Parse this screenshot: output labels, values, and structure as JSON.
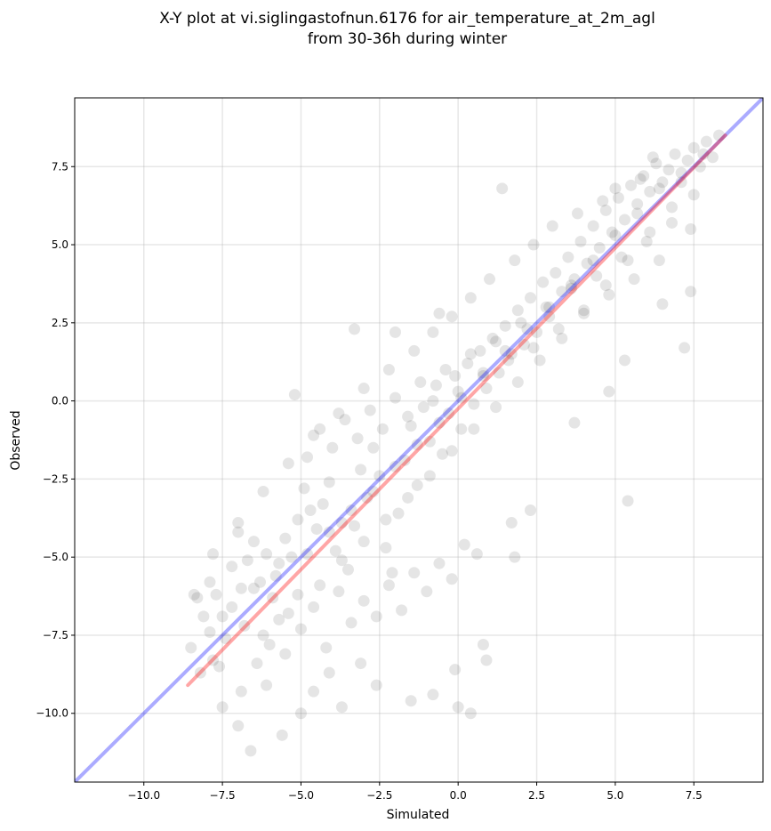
{
  "chart_data": {
    "type": "scatter",
    "title_line1": "X-Y plot at vi.siglingastofnun.6176 for air_temperature_at_2m_agl",
    "title_line2": "from 30-36h during winter",
    "xlabel": "Simulated",
    "ylabel": "Observed",
    "xlim": [
      -12.2,
      9.7
    ],
    "ylim": [
      -12.2,
      9.7
    ],
    "x_ticks": [
      -10.0,
      -7.5,
      -5.0,
      -2.5,
      0.0,
      2.5,
      5.0,
      7.5
    ],
    "x_tick_labels": [
      "−10.0",
      "−7.5",
      "−5.0",
      "−2.5",
      "0.0",
      "2.5",
      "5.0",
      "7.5"
    ],
    "y_ticks": [
      -10.0,
      -7.5,
      -5.0,
      -2.5,
      0.0,
      2.5,
      5.0,
      7.5
    ],
    "y_tick_labels": [
      "−10.0",
      "−7.5",
      "−5.0",
      "−2.5",
      "0.0",
      "2.5",
      "5.0",
      "7.5"
    ],
    "grid": true,
    "point_color": "#000000",
    "point_alpha": 0.1,
    "identity_line": {
      "x": [
        -12.2,
        9.7
      ],
      "y": [
        -12.2,
        9.7
      ],
      "color": "#0000ff"
    },
    "fit_line": {
      "x": [
        -8.6,
        8.5
      ],
      "y": [
        -9.1,
        8.5
      ],
      "color": "#ff0000"
    },
    "points": [
      [
        -8.3,
        -6.3
      ],
      [
        -8.1,
        -6.9
      ],
      [
        -7.9,
        -5.8
      ],
      [
        -7.7,
        -6.2
      ],
      [
        -7.5,
        -6.9
      ],
      [
        -7.4,
        -7.6
      ],
      [
        -7.2,
        -5.3
      ],
      [
        -7.0,
        -4.2
      ],
      [
        -6.9,
        -6.0
      ],
      [
        -6.7,
        -5.1
      ],
      [
        -6.5,
        -4.5
      ],
      [
        -6.3,
        -5.8
      ],
      [
        -6.1,
        -4.9
      ],
      [
        -5.9,
        -6.3
      ],
      [
        -5.7,
        -5.2
      ],
      [
        -5.5,
        -4.4
      ],
      [
        -5.3,
        -5.0
      ],
      [
        -5.1,
        -3.8
      ],
      [
        -4.9,
        -2.8
      ],
      [
        -4.7,
        -3.5
      ],
      [
        -4.5,
        -4.1
      ],
      [
        -4.3,
        -3.3
      ],
      [
        -4.1,
        -2.6
      ],
      [
        -3.9,
        -4.8
      ],
      [
        -3.7,
        -3.9
      ],
      [
        -3.5,
        -5.4
      ],
      [
        -3.3,
        -4.0
      ],
      [
        -3.1,
        -2.2
      ],
      [
        -2.9,
        -3.1
      ],
      [
        -2.7,
        -1.5
      ],
      [
        -2.5,
        -2.4
      ],
      [
        -2.3,
        -4.7
      ],
      [
        -2.1,
        -5.5
      ],
      [
        -1.9,
        -3.6
      ],
      [
        -1.7,
        -1.9
      ],
      [
        -1.5,
        -0.8
      ],
      [
        -1.3,
        -2.7
      ],
      [
        -1.1,
        -0.2
      ],
      [
        -0.9,
        -1.3
      ],
      [
        -0.7,
        0.5
      ],
      [
        -0.5,
        -1.7
      ],
      [
        -0.3,
        -0.4
      ],
      [
        -0.1,
        0.8
      ],
      [
        0.1,
        -0.9
      ],
      [
        0.3,
        1.2
      ],
      [
        0.5,
        -0.1
      ],
      [
        0.7,
        1.6
      ],
      [
        0.9,
        0.4
      ],
      [
        1.1,
        2.0
      ],
      [
        1.3,
        0.9
      ],
      [
        1.5,
        2.4
      ],
      [
        1.7,
        1.5
      ],
      [
        1.9,
        2.9
      ],
      [
        2.1,
        1.8
      ],
      [
        2.3,
        3.3
      ],
      [
        2.5,
        2.2
      ],
      [
        2.7,
        3.8
      ],
      [
        2.9,
        2.7
      ],
      [
        3.1,
        4.1
      ],
      [
        3.3,
        3.5
      ],
      [
        3.5,
        4.6
      ],
      [
        3.7,
        3.9
      ],
      [
        3.9,
        5.1
      ],
      [
        4.1,
        4.4
      ],
      [
        4.3,
        5.6
      ],
      [
        4.5,
        4.9
      ],
      [
        4.7,
        6.1
      ],
      [
        4.9,
        5.4
      ],
      [
        5.1,
        6.5
      ],
      [
        5.3,
        5.8
      ],
      [
        5.5,
        6.9
      ],
      [
        5.7,
        6.3
      ],
      [
        5.9,
        7.2
      ],
      [
        6.1,
        6.7
      ],
      [
        6.3,
        7.6
      ],
      [
        6.5,
        7.0
      ],
      [
        6.7,
        7.4
      ],
      [
        6.9,
        7.9
      ],
      [
        7.1,
        7.3
      ],
      [
        7.3,
        7.7
      ],
      [
        7.5,
        8.1
      ],
      [
        7.7,
        7.5
      ],
      [
        7.9,
        8.3
      ],
      [
        8.1,
        7.8
      ],
      [
        8.3,
        8.5
      ],
      [
        7.4,
        5.5
      ],
      [
        7.2,
        1.7
      ],
      [
        7.4,
        3.5
      ],
      [
        6.5,
        3.1
      ],
      [
        5.3,
        1.3
      ],
      [
        5.4,
        -3.2
      ],
      [
        1.4,
        6.8
      ],
      [
        -0.6,
        2.8
      ],
      [
        -3.3,
        2.3
      ],
      [
        -5.2,
        0.2
      ],
      [
        -2.0,
        2.2
      ],
      [
        -7.8,
        -8.3
      ],
      [
        -7.5,
        -9.8
      ],
      [
        -7.0,
        -10.4
      ],
      [
        -6.6,
        -11.2
      ],
      [
        -6.1,
        -9.1
      ],
      [
        -5.6,
        -10.7
      ],
      [
        -5.0,
        -10.0
      ],
      [
        -4.6,
        -9.3
      ],
      [
        -4.1,
        -8.7
      ],
      [
        -3.7,
        -9.8
      ],
      [
        -3.1,
        -8.4
      ],
      [
        -2.6,
        -9.1
      ],
      [
        -1.5,
        -9.6
      ],
      [
        -0.8,
        -9.4
      ],
      [
        0.0,
        -9.8
      ],
      [
        0.4,
        -10.0
      ],
      [
        -0.1,
        -8.6
      ],
      [
        0.8,
        -7.8
      ],
      [
        0.9,
        -8.3
      ],
      [
        1.8,
        -5.0
      ],
      [
        1.7,
        -3.9
      ],
      [
        2.3,
        -3.5
      ],
      [
        3.7,
        -0.7
      ],
      [
        4.8,
        0.3
      ],
      [
        -6.8,
        -7.2
      ],
      [
        -6.4,
        -8.4
      ],
      [
        -6.0,
        -7.8
      ],
      [
        -5.7,
        -7.0
      ],
      [
        -5.4,
        -6.8
      ],
      [
        -5.0,
        -7.3
      ],
      [
        -4.6,
        -6.6
      ],
      [
        -4.2,
        -7.9
      ],
      [
        -3.8,
        -6.1
      ],
      [
        -3.4,
        -7.1
      ],
      [
        -3.0,
        -6.4
      ],
      [
        -2.6,
        -6.9
      ],
      [
        -2.2,
        -5.9
      ],
      [
        -1.8,
        -6.7
      ],
      [
        -1.4,
        -5.5
      ],
      [
        -1.0,
        -6.1
      ],
      [
        -0.6,
        -5.2
      ],
      [
        -0.2,
        -5.7
      ],
      [
        0.2,
        -4.6
      ],
      [
        0.6,
        -4.9
      ],
      [
        -4.8,
        -1.8
      ],
      [
        -4.4,
        -0.9
      ],
      [
        -4.0,
        -1.5
      ],
      [
        -3.6,
        -0.6
      ],
      [
        -3.2,
        -1.2
      ],
      [
        -2.8,
        -0.3
      ],
      [
        -2.4,
        -0.9
      ],
      [
        -2.0,
        0.1
      ],
      [
        -1.6,
        -0.5
      ],
      [
        -1.2,
        0.6
      ],
      [
        -0.8,
        0.0
      ],
      [
        -0.4,
        1.0
      ],
      [
        0.0,
        0.3
      ],
      [
        0.4,
        1.5
      ],
      [
        0.8,
        0.8
      ],
      [
        1.2,
        1.9
      ],
      [
        1.6,
        1.3
      ],
      [
        2.0,
        2.5
      ],
      [
        2.4,
        1.7
      ],
      [
        2.8,
        3.0
      ],
      [
        3.2,
        2.3
      ],
      [
        3.6,
        3.6
      ],
      [
        4.0,
        2.8
      ],
      [
        4.4,
        4.0
      ],
      [
        4.8,
        3.4
      ],
      [
        5.2,
        4.6
      ],
      [
        5.6,
        3.9
      ],
      [
        6.0,
        5.1
      ],
      [
        6.4,
        4.5
      ],
      [
        6.8,
        5.7
      ],
      [
        -7.9,
        -7.4
      ],
      [
        -7.6,
        -8.5
      ],
      [
        -7.2,
        -6.6
      ],
      [
        -6.9,
        -9.3
      ],
      [
        -6.5,
        -6.0
      ],
      [
        -6.2,
        -7.5
      ],
      [
        -5.8,
        -5.6
      ],
      [
        -5.5,
        -8.1
      ],
      [
        -5.1,
        -6.2
      ],
      [
        -4.8,
        -4.9
      ],
      [
        -4.4,
        -5.9
      ],
      [
        -4.1,
        -4.2
      ],
      [
        -3.7,
        -5.1
      ],
      [
        -3.4,
        -3.5
      ],
      [
        -3.0,
        -4.5
      ],
      [
        -2.7,
        -2.9
      ],
      [
        -2.3,
        -3.8
      ],
      [
        -2.0,
        -2.1
      ],
      [
        -1.6,
        -3.1
      ],
      [
        -1.3,
        -1.4
      ],
      [
        -0.9,
        -2.4
      ],
      [
        -0.6,
        -0.7
      ],
      [
        -0.2,
        -1.6
      ],
      [
        0.1,
        0.1
      ],
      [
        0.5,
        -0.9
      ],
      [
        0.8,
        0.9
      ],
      [
        1.2,
        -0.2
      ],
      [
        1.5,
        1.6
      ],
      [
        1.9,
        0.6
      ],
      [
        2.2,
        2.3
      ],
      [
        2.6,
        1.3
      ],
      [
        2.9,
        3.0
      ],
      [
        3.3,
        2.0
      ],
      [
        3.6,
        3.7
      ],
      [
        4.0,
        2.9
      ],
      [
        4.3,
        4.5
      ],
      [
        4.7,
        3.7
      ],
      [
        5.0,
        5.3
      ],
      [
        5.4,
        4.5
      ],
      [
        5.7,
        6.0
      ],
      [
        6.1,
        5.4
      ],
      [
        6.4,
        6.8
      ],
      [
        6.8,
        6.2
      ],
      [
        7.1,
        7.0
      ],
      [
        7.5,
        6.6
      ],
      [
        7.8,
        7.9
      ],
      [
        6.2,
        7.8
      ],
      [
        5.8,
        7.1
      ],
      [
        5.0,
        6.8
      ],
      [
        4.6,
        6.4
      ],
      [
        3.8,
        6.0
      ],
      [
        3.0,
        5.6
      ],
      [
        2.4,
        5.0
      ],
      [
        1.8,
        4.5
      ],
      [
        1.0,
        3.9
      ],
      [
        0.4,
        3.3
      ],
      [
        -0.2,
        2.7
      ],
      [
        -0.8,
        2.2
      ],
      [
        -1.4,
        1.6
      ],
      [
        -2.2,
        1.0
      ],
      [
        -3.0,
        0.4
      ],
      [
        -3.8,
        -0.4
      ],
      [
        -4.6,
        -1.1
      ],
      [
        -5.4,
        -2.0
      ],
      [
        -6.2,
        -2.9
      ],
      [
        -7.0,
        -3.9
      ],
      [
        -7.8,
        -4.9
      ],
      [
        -8.4,
        -6.2
      ],
      [
        -8.5,
        -7.9
      ],
      [
        -8.2,
        -8.7
      ]
    ]
  }
}
